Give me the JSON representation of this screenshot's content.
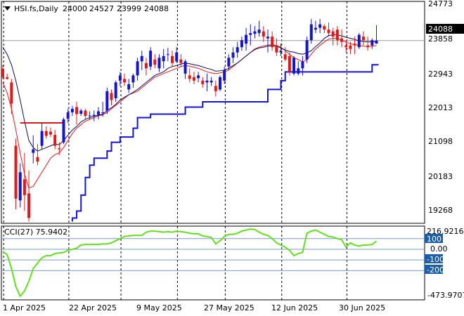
{
  "header": {
    "symbol": "HSI.fs,Daily",
    "open": "24000",
    "high": "24527",
    "low": "23999",
    "close": "24088"
  },
  "price_panel": {
    "y_ticks": [
      "24773",
      "23858",
      "22943",
      "22013",
      "21098",
      "20183",
      "19268"
    ],
    "current_price_label": "24088"
  },
  "cci_panel": {
    "label": "CCI(27) 75.9402",
    "y_ticks": [
      "216.9216",
      "100",
      "0.00",
      "-100",
      "-200",
      "-473.9707"
    ]
  },
  "x_axis": {
    "labels": [
      "1 Apr 2025",
      "22 Apr 2025",
      "9 May 2025",
      "27 May 2025",
      "12 Jun 2025",
      "30 Jun 2025"
    ]
  },
  "colors": {
    "bull": "#1515cc",
    "bear": "#e01a1a",
    "ma_fast": "#e01a1a",
    "ma_slow": "#0a0a60",
    "stop_line": "#1414d2",
    "cci_line": "#66dd22",
    "axis_label_bg": "#1b5fa8",
    "level_line": "#7b9cc7",
    "resistance": "#e01a1a"
  },
  "chart_data": [
    {
      "type": "candlestick",
      "title": "HSI.fs,Daily",
      "ylim": [
        18900,
        25200
      ],
      "y_ticks": [
        24773,
        23858,
        22943,
        22013,
        21098,
        20183,
        19268
      ],
      "x_labels": [
        "1 Apr 2025",
        "22 Apr 2025",
        "9 May 2025",
        "27 May 2025",
        "12 Jun 2025",
        "30 Jun 2025"
      ],
      "current_price": 24088,
      "resistance_level": 21750,
      "candles": [
        [
          23290,
          23390,
          23000,
          23050
        ],
        [
          23050,
          23150,
          22980,
          23000
        ],
        [
          22900,
          23000,
          22000,
          22300
        ],
        [
          21100,
          21300,
          19300,
          19600
        ],
        [
          19550,
          20600,
          19350,
          20350
        ],
        [
          20150,
          20900,
          19250,
          19700
        ],
        [
          19750,
          20400,
          18950,
          19050
        ],
        [
          20900,
          21400,
          20600,
          21000
        ],
        [
          20780,
          21150,
          20550,
          20650
        ],
        [
          21100,
          21750,
          21000,
          21520
        ],
        [
          21520,
          21650,
          21300,
          21380
        ],
        [
          21500,
          21620,
          21350,
          21420
        ],
        [
          21410,
          21550,
          21000,
          21100
        ],
        [
          21030,
          21200,
          20840,
          21000
        ],
        [
          21200,
          21900,
          21150,
          21850
        ],
        [
          21870,
          22150,
          21750,
          22050
        ],
        [
          22050,
          22230,
          21950,
          22150
        ],
        [
          22200,
          22350,
          21700,
          22000
        ],
        [
          22010,
          22150,
          21950,
          22100
        ],
        [
          22100,
          22150,
          21850,
          21950
        ],
        [
          21950,
          22080,
          21850,
          21960
        ],
        [
          21950,
          22100,
          21800,
          21980
        ],
        [
          21980,
          22200,
          21850,
          22080
        ],
        [
          22030,
          22350,
          21930,
          22050
        ],
        [
          22100,
          22750,
          22000,
          22650
        ],
        [
          22600,
          22700,
          22250,
          22400
        ],
        [
          22450,
          22950,
          22350,
          22900
        ],
        [
          22950,
          23200,
          22800,
          23100
        ],
        [
          23000,
          23150,
          22800,
          22900
        ],
        [
          22700,
          23000,
          22600,
          22850
        ],
        [
          22900,
          23150,
          22750,
          23100
        ],
        [
          23100,
          23600,
          22950,
          23500
        ],
        [
          23500,
          23800,
          23250,
          23650
        ],
        [
          23450,
          23600,
          23100,
          23300
        ],
        [
          23350,
          23900,
          23250,
          23800
        ],
        [
          23550,
          23700,
          23300,
          23400
        ],
        [
          23300,
          23700,
          23200,
          23600
        ],
        [
          23500,
          23850,
          23300,
          23650
        ],
        [
          23700,
          23880,
          23500,
          23700
        ],
        [
          23650,
          23800,
          23350,
          23450
        ],
        [
          23500,
          23900,
          23450,
          23750
        ],
        [
          23550,
          23700,
          23350,
          23450
        ],
        [
          23150,
          23550,
          23000,
          23500
        ],
        [
          23100,
          23300,
          22900,
          23000
        ],
        [
          23050,
          23200,
          22850,
          22950
        ],
        [
          23020,
          23200,
          22900,
          23100
        ],
        [
          22950,
          23050,
          22750,
          22850
        ],
        [
          22900,
          23150,
          22650,
          22950
        ],
        [
          22900,
          23050,
          22800,
          22950
        ],
        [
          22800,
          22950,
          22500,
          22650
        ],
        [
          22700,
          23100,
          22650,
          23050
        ],
        [
          22950,
          23350,
          22850,
          23250
        ],
        [
          23350,
          23700,
          23250,
          23600
        ],
        [
          23600,
          23900,
          23450,
          23750
        ],
        [
          23750,
          24050,
          23600,
          23900
        ],
        [
          23900,
          24200,
          23800,
          24100
        ],
        [
          24000,
          24450,
          23800,
          24250
        ],
        [
          24250,
          24550,
          23950,
          24300
        ],
        [
          24280,
          24500,
          24150,
          24350
        ],
        [
          24300,
          24650,
          24200,
          24400
        ],
        [
          24350,
          24500,
          24050,
          24200
        ],
        [
          24150,
          24400,
          23750,
          24200
        ],
        [
          24200,
          24350,
          23800,
          23900
        ],
        [
          23950,
          24150,
          23650,
          23750
        ],
        [
          23750,
          24000,
          23650,
          23800
        ],
        [
          23700,
          23900,
          23500,
          23550
        ],
        [
          23650,
          23750,
          23100,
          23200
        ],
        [
          23150,
          23650,
          23100,
          23600
        ],
        [
          23150,
          23500,
          23100,
          23300
        ],
        [
          23300,
          23650,
          23100,
          23500
        ],
        [
          23550,
          24200,
          23450,
          24100
        ],
        [
          24100,
          24700,
          24000,
          24550
        ],
        [
          24400,
          24650,
          24300,
          24450
        ],
        [
          24450,
          24700,
          24300,
          24550
        ],
        [
          24500,
          24550,
          24300,
          24400
        ],
        [
          24400,
          24600,
          24200,
          24300
        ],
        [
          24350,
          24450,
          23950,
          24200
        ],
        [
          24400,
          24500,
          23950,
          24100
        ],
        [
          24150,
          24400,
          23900,
          24050
        ],
        [
          23950,
          24100,
          23750,
          23900
        ],
        [
          23950,
          24050,
          23700,
          23850
        ],
        [
          24000,
          24200,
          23700,
          23950
        ],
        [
          23900,
          24300,
          23850,
          24250
        ],
        [
          24200,
          24350,
          23950,
          24100
        ],
        [
          23950,
          24200,
          23800,
          23900
        ],
        [
          23950,
          24150,
          23850,
          24100
        ],
        [
          24000,
          24527,
          23999,
          24088
        ]
      ],
      "series": [
        {
          "type": "line",
          "values": [
            23900,
            23700,
            23400,
            22950,
            22400,
            21800,
            21250,
            21050,
            20950,
            21000,
            21050,
            21100,
            21150,
            21130,
            21250,
            21400,
            21550,
            21650,
            21780,
            21850,
            21900,
            21940,
            21970,
            22000,
            22100,
            22180,
            22280,
            22400,
            22480,
            22550,
            22620,
            22700,
            22800,
            22900,
            23000,
            23100,
            23150,
            23200,
            23300,
            23350,
            23380,
            23420,
            23450,
            23430,
            23400,
            23380,
            23340,
            23300,
            23270,
            23220,
            23230,
            23250,
            23300,
            23380,
            23450,
            23550,
            23650,
            23750,
            23830,
            23880,
            23900,
            23930,
            23950,
            23930,
            23880,
            23820,
            23780,
            23760,
            23720,
            23700,
            23740,
            23800,
            23920,
            24020,
            24150,
            24230,
            24250,
            24250,
            24220,
            24180,
            24150,
            24120,
            24080,
            24060,
            24050,
            24050,
            24060
          ]
        },
        {
          "type": "line",
          "values": [
            22900,
            22600,
            22150,
            21550,
            20900,
            20300,
            19900,
            19950,
            20150,
            20350,
            20550,
            20750,
            20850,
            20900,
            21050,
            21250,
            21450,
            21600,
            21700,
            21800,
            21850,
            21900,
            21950,
            21980,
            22050,
            22150,
            22250,
            22350,
            22450,
            22550,
            22600,
            22650,
            22750,
            22850,
            22950,
            23050,
            23100,
            23150,
            23200,
            23250,
            23300,
            23350,
            23380,
            23360,
            23330,
            23300,
            23250,
            23200,
            23170,
            23150,
            23170,
            23200,
            23250,
            23350,
            23450,
            23550,
            23650,
            23750,
            23850,
            23900,
            23940,
            23960,
            23970,
            23950,
            23900,
            23800,
            23700,
            23600,
            23550,
            23480,
            23550,
            23700,
            23850,
            23950,
            24050,
            24130,
            24150,
            24150,
            24100,
            24050,
            24000,
            23970,
            23950,
            23930,
            23920,
            23930,
            23950
          ]
        },
        {
          "type": "step",
          "values": [
            null,
            null,
            null,
            null,
            null,
            null,
            null,
            null,
            null,
            null,
            null,
            null,
            null,
            null,
            null,
            null,
            18950,
            19050,
            19250,
            19700,
            20200,
            20550,
            20750,
            20750,
            20750,
            20950,
            21200,
            21200,
            21350,
            21350,
            21350,
            21600,
            21900,
            21900,
            21900,
            22000,
            22000,
            22000,
            22000,
            22000,
            22000,
            22000,
            22000,
            22200,
            22200,
            22200,
            22200,
            22350,
            22350,
            22350,
            22350,
            22350,
            22350,
            22350,
            22350,
            22350,
            22350,
            22350,
            22350,
            22350,
            22350,
            22350,
            22700,
            22700,
            22700,
            22950,
            23200,
            23200,
            23200,
            23200,
            23200,
            23200,
            23200,
            23200,
            23200,
            23200,
            23200,
            23200,
            23200,
            23200,
            23200,
            23200,
            23200,
            23200,
            23200,
            23200,
            23400
          ]
        }
      ]
    },
    {
      "type": "line",
      "title": "CCI(27) 75.9402",
      "ylim": [
        -473.9707,
        216.9216
      ],
      "levels": [
        100,
        0,
        -100,
        -200
      ],
      "series": [
        {
          "name": "CCI(27)",
          "values": [
            -20,
            -50,
            -180,
            -350,
            -440,
            -390,
            -300,
            -180,
            -130,
            -80,
            -60,
            -60,
            -40,
            -35,
            -30,
            -10,
            0,
            10,
            40,
            45,
            45,
            45,
            45,
            50,
            50,
            60,
            80,
            100,
            120,
            125,
            130,
            130,
            130,
            160,
            170,
            170,
            165,
            160,
            165,
            160,
            170,
            165,
            160,
            150,
            145,
            145,
            125,
            120,
            110,
            50,
            80,
            120,
            140,
            140,
            150,
            170,
            180,
            190,
            185,
            160,
            140,
            130,
            100,
            60,
            40,
            20,
            -10,
            -60,
            -40,
            -30,
            150,
            170,
            180,
            160,
            140,
            120,
            115,
            100,
            90,
            20,
            60,
            40,
            30,
            40,
            40,
            45,
            75.94
          ]
        }
      ]
    }
  ]
}
